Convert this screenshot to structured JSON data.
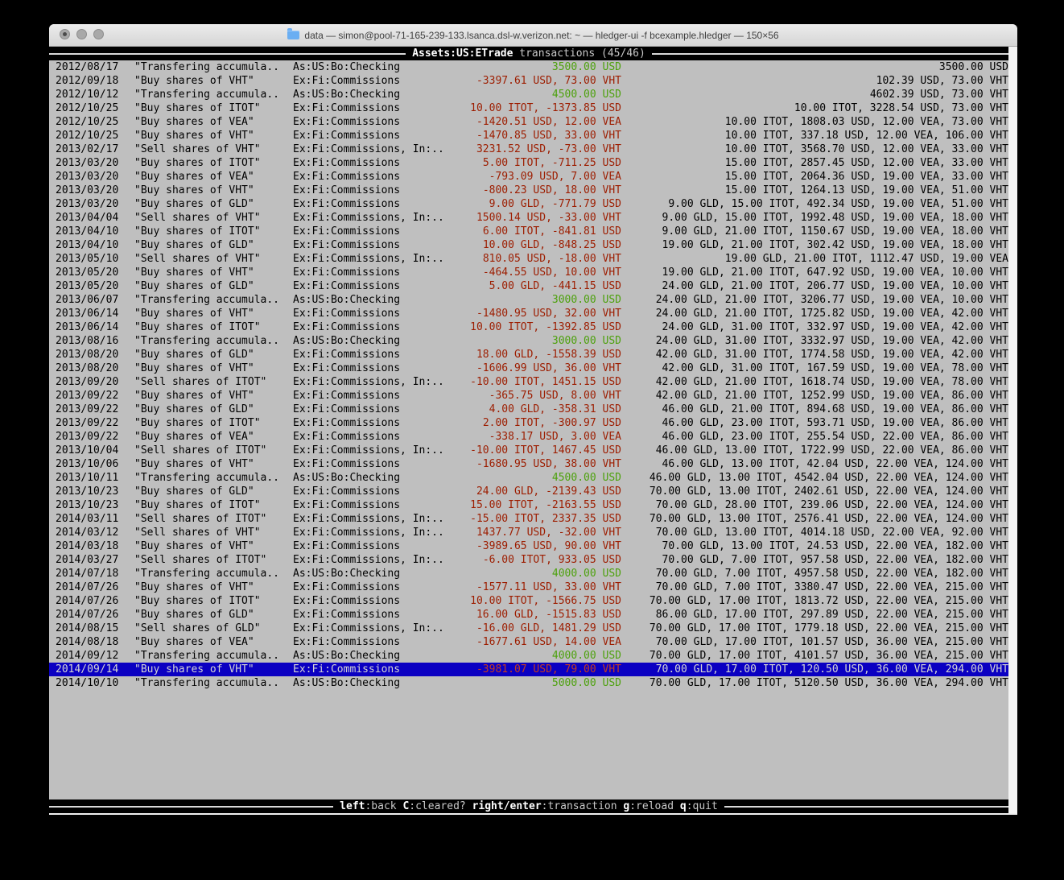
{
  "window": {
    "title": "data — simon@pool-71-165-239-133.lsanca.dsl-w.verizon.net: ~ — hledger-ui -f bcexample.hledger — 150×56"
  },
  "header": {
    "account": "Assets:US:ETrade",
    "rest": "transactions (45/46)"
  },
  "footer": {
    "hints": [
      {
        "key": "left",
        "label": ":back"
      },
      {
        "key": "C",
        "label": ":cleared?"
      },
      {
        "key": "right/enter",
        "label": ":transaction"
      },
      {
        "key": "g",
        "label": ":reload"
      },
      {
        "key": "q",
        "label": ":quit"
      }
    ]
  },
  "colors": {
    "terminal_bg": "#bfbfbf",
    "bar_bg": "#000000",
    "bar_fg": "#c8c8c8",
    "bar_bold_fg": "#ffffff",
    "amount_negative": "#9d1d00",
    "amount_positive": "#4da10d",
    "selection_bg": "#0b00c2",
    "selection_fg": "#d4d4d4"
  },
  "transactions": [
    {
      "date": "2012/08/17",
      "description": "\"Transfering accumula..",
      "account": "As:US:Bo:Checking",
      "amount": "3500.00 USD",
      "amount_color": "green",
      "balance": "3500.00 USD",
      "selected": false
    },
    {
      "date": "2012/09/18",
      "description": "\"Buy shares of VHT\"",
      "account": "Ex:Fi:Commissions",
      "amount": "-3397.61 USD, 73.00 VHT",
      "amount_color": "red",
      "balance": "102.39 USD, 73.00 VHT",
      "selected": false
    },
    {
      "date": "2012/10/12",
      "description": "\"Transfering accumula..",
      "account": "As:US:Bo:Checking",
      "amount": "4500.00 USD",
      "amount_color": "green",
      "balance": "4602.39 USD, 73.00 VHT",
      "selected": false
    },
    {
      "date": "2012/10/25",
      "description": "\"Buy shares of ITOT\"",
      "account": "Ex:Fi:Commissions",
      "amount": "10.00 ITOT, -1373.85 USD",
      "amount_color": "red",
      "balance": "10.00 ITOT, 3228.54 USD, 73.00 VHT",
      "selected": false
    },
    {
      "date": "2012/10/25",
      "description": "\"Buy shares of VEA\"",
      "account": "Ex:Fi:Commissions",
      "amount": "-1420.51 USD, 12.00 VEA",
      "amount_color": "red",
      "balance": "10.00 ITOT, 1808.03 USD, 12.00 VEA, 73.00 VHT",
      "selected": false
    },
    {
      "date": "2012/10/25",
      "description": "\"Buy shares of VHT\"",
      "account": "Ex:Fi:Commissions",
      "amount": "-1470.85 USD, 33.00 VHT",
      "amount_color": "red",
      "balance": "10.00 ITOT, 337.18 USD, 12.00 VEA, 106.00 VHT",
      "selected": false
    },
    {
      "date": "2013/02/17",
      "description": "\"Sell shares of VHT\"",
      "account": "Ex:Fi:Commissions, In:..",
      "amount": "3231.52 USD, -73.00 VHT",
      "amount_color": "red",
      "balance": "10.00 ITOT, 3568.70 USD, 12.00 VEA, 33.00 VHT",
      "selected": false
    },
    {
      "date": "2013/03/20",
      "description": "\"Buy shares of ITOT\"",
      "account": "Ex:Fi:Commissions",
      "amount": "5.00 ITOT, -711.25 USD",
      "amount_color": "red",
      "balance": "15.00 ITOT, 2857.45 USD, 12.00 VEA, 33.00 VHT",
      "selected": false
    },
    {
      "date": "2013/03/20",
      "description": "\"Buy shares of VEA\"",
      "account": "Ex:Fi:Commissions",
      "amount": "-793.09 USD, 7.00 VEA",
      "amount_color": "red",
      "balance": "15.00 ITOT, 2064.36 USD, 19.00 VEA, 33.00 VHT",
      "selected": false
    },
    {
      "date": "2013/03/20",
      "description": "\"Buy shares of VHT\"",
      "account": "Ex:Fi:Commissions",
      "amount": "-800.23 USD, 18.00 VHT",
      "amount_color": "red",
      "balance": "15.00 ITOT, 1264.13 USD, 19.00 VEA, 51.00 VHT",
      "selected": false
    },
    {
      "date": "2013/03/20",
      "description": "\"Buy shares of GLD\"",
      "account": "Ex:Fi:Commissions",
      "amount": "9.00 GLD, -771.79 USD",
      "amount_color": "red",
      "balance": "9.00 GLD, 15.00 ITOT, 492.34 USD, 19.00 VEA, 51.00 VHT",
      "selected": false
    },
    {
      "date": "2013/04/04",
      "description": "\"Sell shares of VHT\"",
      "account": "Ex:Fi:Commissions, In:..",
      "amount": "1500.14 USD, -33.00 VHT",
      "amount_color": "red",
      "balance": "9.00 GLD, 15.00 ITOT, 1992.48 USD, 19.00 VEA, 18.00 VHT",
      "selected": false
    },
    {
      "date": "2013/04/10",
      "description": "\"Buy shares of ITOT\"",
      "account": "Ex:Fi:Commissions",
      "amount": "6.00 ITOT, -841.81 USD",
      "amount_color": "red",
      "balance": "9.00 GLD, 21.00 ITOT, 1150.67 USD, 19.00 VEA, 18.00 VHT",
      "selected": false
    },
    {
      "date": "2013/04/10",
      "description": "\"Buy shares of GLD\"",
      "account": "Ex:Fi:Commissions",
      "amount": "10.00 GLD, -848.25 USD",
      "amount_color": "red",
      "balance": "19.00 GLD, 21.00 ITOT, 302.42 USD, 19.00 VEA, 18.00 VHT",
      "selected": false
    },
    {
      "date": "2013/05/10",
      "description": "\"Sell shares of VHT\"",
      "account": "Ex:Fi:Commissions, In:..",
      "amount": "810.05 USD, -18.00 VHT",
      "amount_color": "red",
      "balance": "19.00 GLD, 21.00 ITOT, 1112.47 USD, 19.00 VEA",
      "selected": false
    },
    {
      "date": "2013/05/20",
      "description": "\"Buy shares of VHT\"",
      "account": "Ex:Fi:Commissions",
      "amount": "-464.55 USD, 10.00 VHT",
      "amount_color": "red",
      "balance": "19.00 GLD, 21.00 ITOT, 647.92 USD, 19.00 VEA, 10.00 VHT",
      "selected": false
    },
    {
      "date": "2013/05/20",
      "description": "\"Buy shares of GLD\"",
      "account": "Ex:Fi:Commissions",
      "amount": "5.00 GLD, -441.15 USD",
      "amount_color": "red",
      "balance": "24.00 GLD, 21.00 ITOT, 206.77 USD, 19.00 VEA, 10.00 VHT",
      "selected": false
    },
    {
      "date": "2013/06/07",
      "description": "\"Transfering accumula..",
      "account": "As:US:Bo:Checking",
      "amount": "3000.00 USD",
      "amount_color": "green",
      "balance": "24.00 GLD, 21.00 ITOT, 3206.77 USD, 19.00 VEA, 10.00 VHT",
      "selected": false
    },
    {
      "date": "2013/06/14",
      "description": "\"Buy shares of VHT\"",
      "account": "Ex:Fi:Commissions",
      "amount": "-1480.95 USD, 32.00 VHT",
      "amount_color": "red",
      "balance": "24.00 GLD, 21.00 ITOT, 1725.82 USD, 19.00 VEA, 42.00 VHT",
      "selected": false
    },
    {
      "date": "2013/06/14",
      "description": "\"Buy shares of ITOT\"",
      "account": "Ex:Fi:Commissions",
      "amount": "10.00 ITOT, -1392.85 USD",
      "amount_color": "red",
      "balance": "24.00 GLD, 31.00 ITOT, 332.97 USD, 19.00 VEA, 42.00 VHT",
      "selected": false
    },
    {
      "date": "2013/08/16",
      "description": "\"Transfering accumula..",
      "account": "As:US:Bo:Checking",
      "amount": "3000.00 USD",
      "amount_color": "green",
      "balance": "24.00 GLD, 31.00 ITOT, 3332.97 USD, 19.00 VEA, 42.00 VHT",
      "selected": false
    },
    {
      "date": "2013/08/20",
      "description": "\"Buy shares of GLD\"",
      "account": "Ex:Fi:Commissions",
      "amount": "18.00 GLD, -1558.39 USD",
      "amount_color": "red",
      "balance": "42.00 GLD, 31.00 ITOT, 1774.58 USD, 19.00 VEA, 42.00 VHT",
      "selected": false
    },
    {
      "date": "2013/08/20",
      "description": "\"Buy shares of VHT\"",
      "account": "Ex:Fi:Commissions",
      "amount": "-1606.99 USD, 36.00 VHT",
      "amount_color": "red",
      "balance": "42.00 GLD, 31.00 ITOT, 167.59 USD, 19.00 VEA, 78.00 VHT",
      "selected": false
    },
    {
      "date": "2013/09/20",
      "description": "\"Sell shares of ITOT\"",
      "account": "Ex:Fi:Commissions, In:..",
      "amount": "-10.00 ITOT, 1451.15 USD",
      "amount_color": "red",
      "balance": "42.00 GLD, 21.00 ITOT, 1618.74 USD, 19.00 VEA, 78.00 VHT",
      "selected": false
    },
    {
      "date": "2013/09/22",
      "description": "\"Buy shares of VHT\"",
      "account": "Ex:Fi:Commissions",
      "amount": "-365.75 USD, 8.00 VHT",
      "amount_color": "red",
      "balance": "42.00 GLD, 21.00 ITOT, 1252.99 USD, 19.00 VEA, 86.00 VHT",
      "selected": false
    },
    {
      "date": "2013/09/22",
      "description": "\"Buy shares of GLD\"",
      "account": "Ex:Fi:Commissions",
      "amount": "4.00 GLD, -358.31 USD",
      "amount_color": "red",
      "balance": "46.00 GLD, 21.00 ITOT, 894.68 USD, 19.00 VEA, 86.00 VHT",
      "selected": false
    },
    {
      "date": "2013/09/22",
      "description": "\"Buy shares of ITOT\"",
      "account": "Ex:Fi:Commissions",
      "amount": "2.00 ITOT, -300.97 USD",
      "amount_color": "red",
      "balance": "46.00 GLD, 23.00 ITOT, 593.71 USD, 19.00 VEA, 86.00 VHT",
      "selected": false
    },
    {
      "date": "2013/09/22",
      "description": "\"Buy shares of VEA\"",
      "account": "Ex:Fi:Commissions",
      "amount": "-338.17 USD, 3.00 VEA",
      "amount_color": "red",
      "balance": "46.00 GLD, 23.00 ITOT, 255.54 USD, 22.00 VEA, 86.00 VHT",
      "selected": false
    },
    {
      "date": "2013/10/04",
      "description": "\"Sell shares of ITOT\"",
      "account": "Ex:Fi:Commissions, In:..",
      "amount": "-10.00 ITOT, 1467.45 USD",
      "amount_color": "red",
      "balance": "46.00 GLD, 13.00 ITOT, 1722.99 USD, 22.00 VEA, 86.00 VHT",
      "selected": false
    },
    {
      "date": "2013/10/06",
      "description": "\"Buy shares of VHT\"",
      "account": "Ex:Fi:Commissions",
      "amount": "-1680.95 USD, 38.00 VHT",
      "amount_color": "red",
      "balance": "46.00 GLD, 13.00 ITOT, 42.04 USD, 22.00 VEA, 124.00 VHT",
      "selected": false
    },
    {
      "date": "2013/10/11",
      "description": "\"Transfering accumula..",
      "account": "As:US:Bo:Checking",
      "amount": "4500.00 USD",
      "amount_color": "green",
      "balance": "46.00 GLD, 13.00 ITOT, 4542.04 USD, 22.00 VEA, 124.00 VHT",
      "selected": false
    },
    {
      "date": "2013/10/23",
      "description": "\"Buy shares of GLD\"",
      "account": "Ex:Fi:Commissions",
      "amount": "24.00 GLD, -2139.43 USD",
      "amount_color": "red",
      "balance": "70.00 GLD, 13.00 ITOT, 2402.61 USD, 22.00 VEA, 124.00 VHT",
      "selected": false
    },
    {
      "date": "2013/10/23",
      "description": "\"Buy shares of ITOT\"",
      "account": "Ex:Fi:Commissions",
      "amount": "15.00 ITOT, -2163.55 USD",
      "amount_color": "red",
      "balance": "70.00 GLD, 28.00 ITOT, 239.06 USD, 22.00 VEA, 124.00 VHT",
      "selected": false
    },
    {
      "date": "2014/03/11",
      "description": "\"Sell shares of ITOT\"",
      "account": "Ex:Fi:Commissions, In:..",
      "amount": "-15.00 ITOT, 2337.35 USD",
      "amount_color": "red",
      "balance": "70.00 GLD, 13.00 ITOT, 2576.41 USD, 22.00 VEA, 124.00 VHT",
      "selected": false
    },
    {
      "date": "2014/03/12",
      "description": "\"Sell shares of VHT\"",
      "account": "Ex:Fi:Commissions, In:..",
      "amount": "1437.77 USD, -32.00 VHT",
      "amount_color": "red",
      "balance": "70.00 GLD, 13.00 ITOT, 4014.18 USD, 22.00 VEA, 92.00 VHT",
      "selected": false
    },
    {
      "date": "2014/03/18",
      "description": "\"Buy shares of VHT\"",
      "account": "Ex:Fi:Commissions",
      "amount": "-3989.65 USD, 90.00 VHT",
      "amount_color": "red",
      "balance": "70.00 GLD, 13.00 ITOT, 24.53 USD, 22.00 VEA, 182.00 VHT",
      "selected": false
    },
    {
      "date": "2014/03/27",
      "description": "\"Sell shares of ITOT\"",
      "account": "Ex:Fi:Commissions, In:..",
      "amount": "-6.00 ITOT, 933.05 USD",
      "amount_color": "red",
      "balance": "70.00 GLD, 7.00 ITOT, 957.58 USD, 22.00 VEA, 182.00 VHT",
      "selected": false
    },
    {
      "date": "2014/07/18",
      "description": "\"Transfering accumula..",
      "account": "As:US:Bo:Checking",
      "amount": "4000.00 USD",
      "amount_color": "green",
      "balance": "70.00 GLD, 7.00 ITOT, 4957.58 USD, 22.00 VEA, 182.00 VHT",
      "selected": false
    },
    {
      "date": "2014/07/26",
      "description": "\"Buy shares of VHT\"",
      "account": "Ex:Fi:Commissions",
      "amount": "-1577.11 USD, 33.00 VHT",
      "amount_color": "red",
      "balance": "70.00 GLD, 7.00 ITOT, 3380.47 USD, 22.00 VEA, 215.00 VHT",
      "selected": false
    },
    {
      "date": "2014/07/26",
      "description": "\"Buy shares of ITOT\"",
      "account": "Ex:Fi:Commissions",
      "amount": "10.00 ITOT, -1566.75 USD",
      "amount_color": "red",
      "balance": "70.00 GLD, 17.00 ITOT, 1813.72 USD, 22.00 VEA, 215.00 VHT",
      "selected": false
    },
    {
      "date": "2014/07/26",
      "description": "\"Buy shares of GLD\"",
      "account": "Ex:Fi:Commissions",
      "amount": "16.00 GLD, -1515.83 USD",
      "amount_color": "red",
      "balance": "86.00 GLD, 17.00 ITOT, 297.89 USD, 22.00 VEA, 215.00 VHT",
      "selected": false
    },
    {
      "date": "2014/08/15",
      "description": "\"Sell shares of GLD\"",
      "account": "Ex:Fi:Commissions, In:..",
      "amount": "-16.00 GLD, 1481.29 USD",
      "amount_color": "red",
      "balance": "70.00 GLD, 17.00 ITOT, 1779.18 USD, 22.00 VEA, 215.00 VHT",
      "selected": false
    },
    {
      "date": "2014/08/18",
      "description": "\"Buy shares of VEA\"",
      "account": "Ex:Fi:Commissions",
      "amount": "-1677.61 USD, 14.00 VEA",
      "amount_color": "red",
      "balance": "70.00 GLD, 17.00 ITOT, 101.57 USD, 36.00 VEA, 215.00 VHT",
      "selected": false
    },
    {
      "date": "2014/09/12",
      "description": "\"Transfering accumula..",
      "account": "As:US:Bo:Checking",
      "amount": "4000.00 USD",
      "amount_color": "green",
      "balance": "70.00 GLD, 17.00 ITOT, 4101.57 USD, 36.00 VEA, 215.00 VHT",
      "selected": false
    },
    {
      "date": "2014/09/14",
      "description": "\"Buy shares of VHT\"",
      "account": "Ex:Fi:Commissions",
      "amount": "-3981.07 USD, 79.00 VHT",
      "amount_color": "red",
      "balance": "70.00 GLD, 17.00 ITOT, 120.50 USD, 36.00 VEA, 294.00 VHT",
      "selected": true
    },
    {
      "date": "2014/10/10",
      "description": "\"Transfering accumula..",
      "account": "As:US:Bo:Checking",
      "amount": "5000.00 USD",
      "amount_color": "green",
      "balance": "70.00 GLD, 17.00 ITOT, 5120.50 USD, 36.00 VEA, 294.00 VHT",
      "selected": false
    }
  ]
}
